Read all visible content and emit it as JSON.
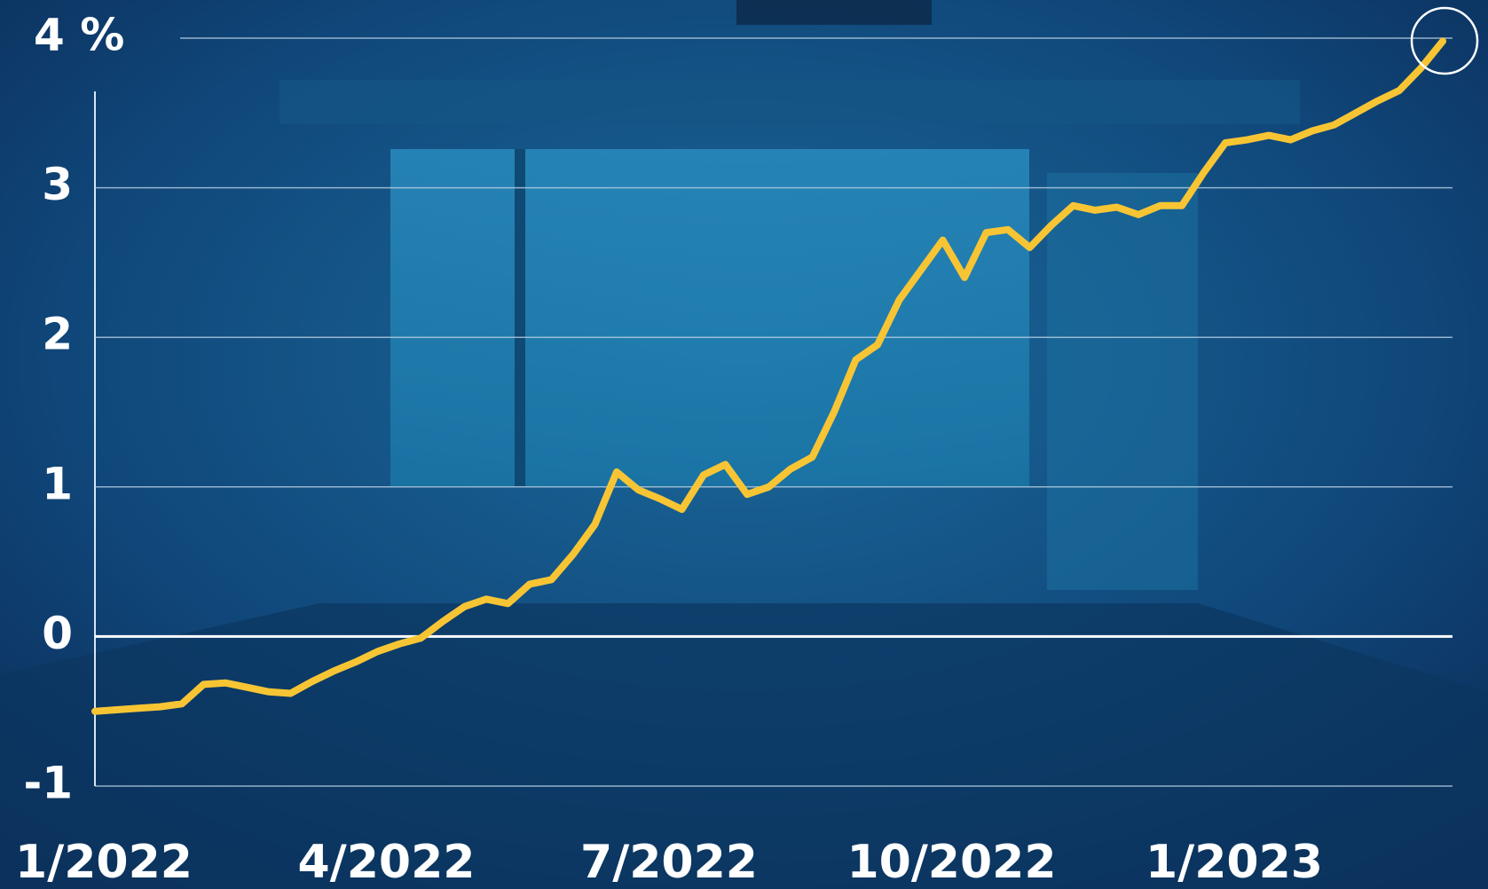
{
  "chart_data": {
    "type": "line",
    "categories": [
      "1/2022",
      null,
      null,
      null,
      null,
      null,
      null,
      null,
      null,
      null,
      null,
      null,
      null,
      "4/2022",
      null,
      null,
      null,
      null,
      null,
      null,
      null,
      null,
      null,
      null,
      null,
      null,
      "7/2022",
      null,
      null,
      null,
      null,
      null,
      null,
      null,
      null,
      null,
      null,
      null,
      null,
      "10/2022",
      null,
      null,
      null,
      null,
      null,
      null,
      null,
      null,
      null,
      null,
      null,
      null,
      "1/2023",
      null,
      null,
      null,
      null,
      null,
      null,
      null,
      null,
      null,
      null
    ],
    "series": [
      {
        "color": "#f7c534",
        "values": [
          -0.5,
          -0.49,
          -0.48,
          -0.47,
          -0.45,
          -0.32,
          -0.31,
          -0.34,
          -0.37,
          -0.38,
          -0.3,
          -0.23,
          -0.17,
          -0.1,
          -0.05,
          -0.01,
          0.1,
          0.2,
          0.25,
          0.22,
          0.35,
          0.38,
          0.55,
          0.75,
          1.1,
          0.98,
          0.92,
          0.85,
          1.08,
          1.15,
          0.95,
          1.0,
          1.12,
          1.2,
          1.5,
          1.85,
          1.95,
          2.25,
          2.45,
          2.65,
          2.4,
          2.7,
          2.72,
          2.6,
          2.75,
          2.88,
          2.85,
          2.87,
          2.82,
          2.88,
          2.88,
          3.1,
          3.3,
          3.32,
          3.35,
          3.32,
          3.38,
          3.42,
          3.5,
          3.58,
          3.65,
          3.8,
          3.98
        ]
      }
    ],
    "ylim": [
      -1,
      4
    ],
    "yticks": [
      -1,
      0,
      1,
      2,
      3,
      {
        "value": 4,
        "label": "4 %"
      }
    ],
    "grid": true
  }
}
